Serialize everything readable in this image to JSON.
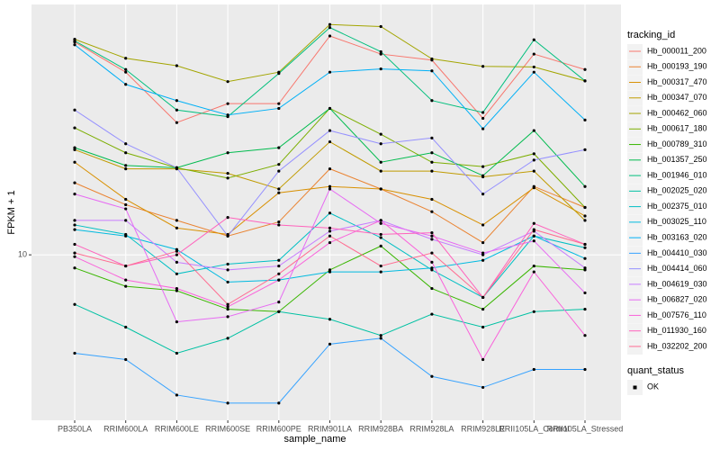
{
  "chart_data": {
    "type": "line",
    "x_label": "sample_name",
    "y_label": "FPKM + 1",
    "log_y": true,
    "grid": true,
    "categories": [
      "PB350LA",
      "RRIM600LA",
      "RRIM600LE",
      "RRIM600SE",
      "RRIM600PE",
      "RRIM901LA",
      "RRIM928BA",
      "RRIM928LA",
      "RRIM928LE",
      "RRII105LA_Control",
      "RRII105LA_Stressed"
    ],
    "ylim": [
      4,
      40
    ],
    "yticks": [
      10
    ],
    "legend_title": "tracking_id",
    "point_legend_title": "quant_status",
    "point_legend_label": "OK",
    "point_color": "#000000",
    "series": [
      {
        "name": "Hb_000011_200",
        "color": "#F8766D",
        "values": [
          32.5,
          27.5,
          20.8,
          23.1,
          23.1,
          33.6,
          30.4,
          29.4,
          21.3,
          30.4,
          27.9
        ]
      },
      {
        "name": "Hb_000193_190",
        "color": "#EA8331",
        "values": [
          14.9,
          13.2,
          12.1,
          11.1,
          12.0,
          16.1,
          14.4,
          12.7,
          10.7,
          14.6,
          13.0
        ]
      },
      {
        "name": "Hb_000317_470",
        "color": "#D89000",
        "values": [
          16.7,
          13.6,
          11.6,
          11.2,
          14.1,
          14.6,
          14.4,
          13.6,
          11.8,
          14.5,
          12.4
        ]
      },
      {
        "name": "Hb_000347_070",
        "color": "#C09B00",
        "values": [
          17.9,
          16.1,
          16.1,
          15.7,
          14.4,
          18.7,
          15.9,
          15.9,
          15.4,
          15.9,
          12.1
        ]
      },
      {
        "name": "Hb_000462_060",
        "color": "#A3A500",
        "values": [
          33.0,
          29.7,
          28.5,
          26.1,
          27.5,
          35.8,
          35.4,
          29.6,
          28.4,
          28.3,
          26.2
        ]
      },
      {
        "name": "Hb_000617_180",
        "color": "#7CAE00",
        "values": [
          20.2,
          17.6,
          16.2,
          15.3,
          16.5,
          22.5,
          19.5,
          16.7,
          16.3,
          17.5,
          13.0
        ]
      },
      {
        "name": "Hb_000789_310",
        "color": "#39B600",
        "values": [
          9.3,
          8.4,
          8.2,
          7.4,
          7.3,
          9.2,
          10.5,
          8.3,
          7.4,
          9.4,
          9.2
        ]
      },
      {
        "name": "Hb_001357_250",
        "color": "#00BB4E",
        "values": [
          18.1,
          16.4,
          16.2,
          17.6,
          18.1,
          22.5,
          16.7,
          17.6,
          15.5,
          19.9,
          14.6
        ]
      },
      {
        "name": "Hb_001946_010",
        "color": "#00BF7D",
        "values": [
          32.7,
          27.9,
          22.3,
          21.5,
          27.3,
          35.2,
          30.8,
          23.5,
          22.0,
          32.9,
          26.2
        ]
      },
      {
        "name": "Hb_002025_020",
        "color": "#00C1A3",
        "values": [
          7.6,
          6.7,
          5.8,
          6.3,
          7.3,
          7.0,
          6.4,
          7.2,
          6.7,
          7.3,
          7.4
        ]
      },
      {
        "name": "Hb_002375_010",
        "color": "#00BFC4",
        "values": [
          11.8,
          11.2,
          9.0,
          9.5,
          9.7,
          12.6,
          11.0,
          9.2,
          7.9,
          11.1,
          10.4
        ]
      },
      {
        "name": "Hb_003025_110",
        "color": "#00BAE0",
        "values": [
          11.5,
          11.1,
          10.3,
          8.6,
          8.7,
          9.1,
          9.1,
          9.3,
          9.7,
          11.1,
          9.8
        ]
      },
      {
        "name": "Hb_003163_020",
        "color": "#00B0F6",
        "values": [
          32.0,
          25.7,
          23.5,
          21.7,
          22.5,
          27.5,
          28.0,
          27.7,
          20.1,
          27.5,
          21.1
        ]
      },
      {
        "name": "Hb_004410_030",
        "color": "#35A2FF",
        "values": [
          5.8,
          5.6,
          4.6,
          4.4,
          4.4,
          6.1,
          6.3,
          5.1,
          4.8,
          5.3,
          5.3
        ]
      },
      {
        "name": "Hb_004414_060",
        "color": "#9590FF",
        "values": [
          22.3,
          18.5,
          16.2,
          11.1,
          15.9,
          19.9,
          18.5,
          19.1,
          14.0,
          16.9,
          17.9
        ]
      },
      {
        "name": "Hb_004619_030",
        "color": "#C77CFF",
        "values": [
          12.1,
          12.1,
          9.6,
          9.2,
          9.4,
          11.4,
          12.1,
          10.9,
          10.0,
          11.4,
          9.3
        ]
      },
      {
        "name": "Hb_006827_020",
        "color": "#E76BF3",
        "values": [
          14.0,
          12.9,
          6.9,
          7.1,
          7.7,
          14.4,
          11.9,
          11.1,
          10.1,
          10.8,
          8.1
        ]
      },
      {
        "name": "Hb_007576_110",
        "color": "#FA62DB",
        "values": [
          9.9,
          8.7,
          8.3,
          7.5,
          8.7,
          10.7,
          12.1,
          9.6,
          5.6,
          9.1,
          6.4
        ]
      },
      {
        "name": "Hb_011930_160",
        "color": "#FF62BC",
        "values": [
          10.6,
          9.4,
          10.0,
          12.3,
          11.8,
          11.6,
          11.2,
          11.3,
          7.9,
          11.9,
          10.6
        ]
      },
      {
        "name": "Hb_032202_200",
        "color": "#FF6C91",
        "values": [
          10.1,
          9.4,
          10.2,
          7.6,
          9.0,
          11.1,
          9.4,
          10.1,
          7.9,
          11.5,
          10.6
        ]
      }
    ]
  }
}
